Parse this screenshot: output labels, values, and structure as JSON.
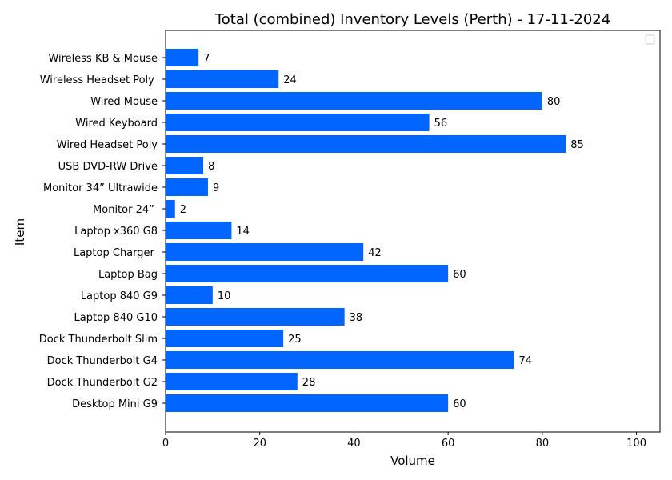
{
  "chart_data": {
    "type": "bar",
    "orientation": "horizontal",
    "title": "Total (combined) Inventory Levels (Perth) - 17-11-2024",
    "xlabel": "Volume",
    "ylabel": "Item",
    "xlim": [
      0,
      105
    ],
    "xticks": [
      "0",
      "20",
      "40",
      "60",
      "80",
      "100"
    ],
    "grid": false,
    "legend": "top-right",
    "bar_color": "#0066ff",
    "categories": [
      "Desktop Mini G9",
      "Dock Thunderbolt G2",
      "Dock Thunderbolt G4",
      "Dock Thunderbolt Slim",
      "Laptop 840 G10",
      "Laptop 840 G9",
      "Laptop Bag",
      "Laptop Charger ",
      "Laptop x360 G8",
      "Monitor 24” ",
      "Monitor 34” Ultrawide",
      "USB DVD-RW Drive",
      "Wired Headset Poly",
      "Wired Keyboard",
      "Wired Mouse",
      "Wireless Headset Poly ",
      "Wireless KB & Mouse"
    ],
    "values": [
      60,
      28,
      74,
      25,
      38,
      10,
      60,
      42,
      14,
      2,
      9,
      8,
      85,
      56,
      80,
      24,
      7
    ]
  }
}
